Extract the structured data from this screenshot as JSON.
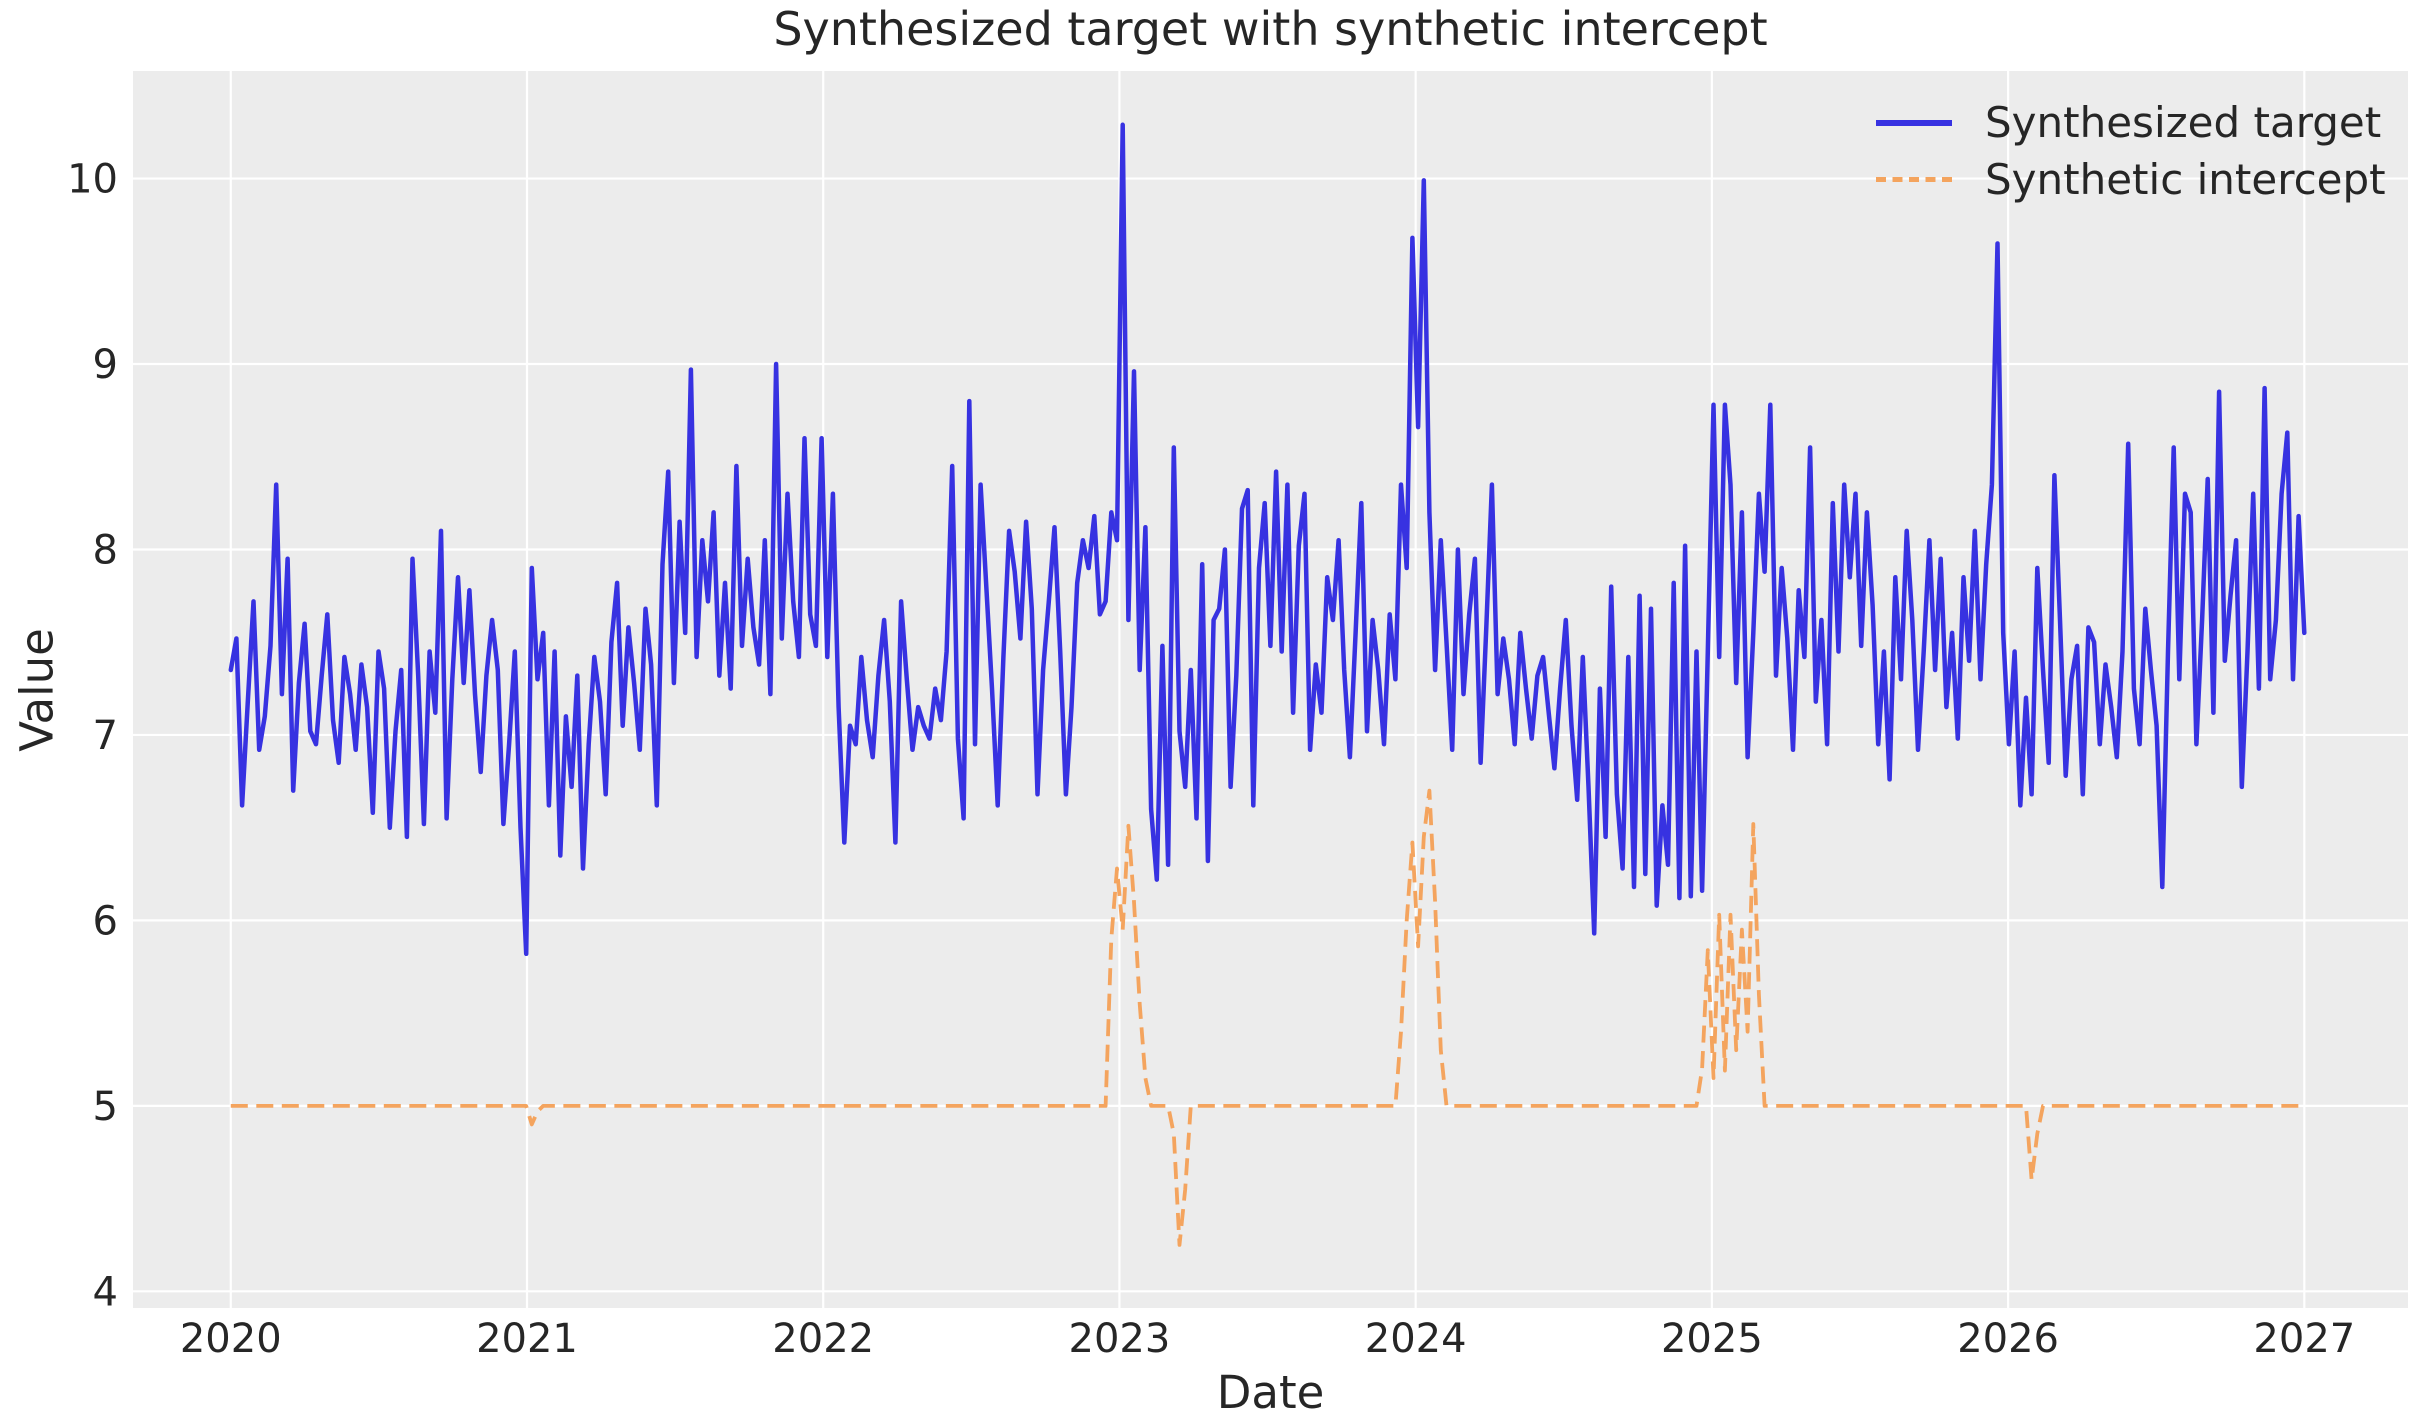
{
  "figure": {
    "background": "#ffffff"
  },
  "chart_data": {
    "type": "line",
    "title": "Synthesized target with synthetic intercept",
    "xlabel": "Date",
    "ylabel": "Value",
    "axes_background": "#ececec",
    "grid": true,
    "grid_color": "#ffffff",
    "text_color": "#262626",
    "legend_position": "upper right",
    "xlim": [
      2019.67,
      2027.35
    ],
    "ylim": [
      3.91,
      10.58
    ],
    "xticks": [
      2020,
      2021,
      2022,
      2023,
      2024,
      2025,
      2026,
      2027
    ],
    "yticks": [
      4,
      5,
      6,
      7,
      8,
      9,
      10
    ],
    "x_start": 2020.0,
    "x_end": 2027.0,
    "x_unit": "years (weekly samples)",
    "n_points": 366,
    "series": [
      {
        "name": "Synthesized target",
        "color": "#3732e1",
        "style": "solid",
        "line_width": 4.5,
        "values": [
          7.35,
          7.52,
          6.62,
          7.18,
          7.72,
          6.92,
          7.1,
          7.48,
          8.35,
          7.22,
          7.95,
          6.7,
          7.28,
          7.6,
          7.02,
          6.95,
          7.32,
          7.65,
          7.08,
          6.85,
          7.42,
          7.22,
          6.92,
          7.38,
          7.15,
          6.58,
          7.45,
          7.25,
          6.5,
          7.02,
          7.35,
          6.45,
          7.95,
          7.32,
          6.52,
          7.45,
          7.12,
          8.1,
          6.55,
          7.3,
          7.85,
          7.28,
          7.78,
          7.22,
          6.8,
          7.32,
          7.62,
          7.35,
          6.52,
          6.95,
          7.45,
          6.5,
          5.82,
          7.9,
          7.3,
          7.55,
          6.62,
          7.45,
          6.35,
          7.1,
          6.72,
          7.32,
          6.28,
          6.95,
          7.42,
          7.18,
          6.68,
          7.5,
          7.82,
          7.05,
          7.58,
          7.28,
          6.92,
          7.68,
          7.38,
          6.62,
          7.92,
          8.42,
          7.28,
          8.15,
          7.55,
          8.97,
          7.42,
          8.05,
          7.72,
          8.2,
          7.32,
          7.82,
          7.25,
          8.45,
          7.48,
          7.95,
          7.58,
          7.38,
          8.05,
          7.22,
          9.0,
          7.52,
          8.3,
          7.72,
          7.42,
          8.6,
          7.65,
          7.48,
          8.6,
          7.42,
          8.3,
          7.15,
          6.42,
          7.05,
          6.95,
          7.42,
          7.08,
          6.88,
          7.32,
          7.62,
          7.18,
          6.42,
          7.72,
          7.3,
          6.92,
          7.15,
          7.05,
          6.98,
          7.25,
          7.08,
          7.45,
          8.45,
          6.98,
          6.55,
          8.8,
          6.95,
          8.35,
          7.8,
          7.25,
          6.62,
          7.42,
          8.1,
          7.88,
          7.52,
          8.15,
          7.68,
          6.68,
          7.35,
          7.72,
          8.12,
          7.45,
          6.68,
          7.15,
          7.82,
          8.05,
          7.9,
          8.18,
          7.65,
          7.72,
          8.2,
          8.05,
          10.29,
          7.62,
          8.96,
          7.35,
          8.12,
          6.6,
          6.22,
          7.48,
          6.3,
          8.55,
          7.02,
          6.72,
          7.35,
          6.55,
          7.92,
          6.32,
          7.62,
          7.68,
          8.0,
          6.72,
          7.32,
          8.22,
          8.32,
          6.62,
          7.9,
          8.25,
          7.48,
          8.42,
          7.45,
          8.35,
          7.12,
          8.02,
          8.3,
          6.92,
          7.38,
          7.12,
          7.85,
          7.62,
          8.05,
          7.35,
          6.88,
          7.55,
          8.25,
          7.02,
          7.62,
          7.35,
          6.95,
          7.65,
          7.3,
          8.35,
          7.9,
          9.68,
          8.66,
          9.99,
          8.2,
          7.35,
          8.05,
          7.5,
          6.92,
          8.0,
          7.22,
          7.65,
          7.95,
          6.85,
          7.58,
          8.35,
          7.22,
          7.52,
          7.3,
          6.95,
          7.55,
          7.25,
          6.98,
          7.32,
          7.42,
          7.12,
          6.82,
          7.25,
          7.62,
          7.05,
          6.65,
          7.42,
          6.72,
          5.93,
          7.25,
          6.45,
          7.8,
          6.68,
          6.28,
          7.42,
          6.18,
          7.75,
          6.25,
          7.68,
          6.08,
          6.62,
          6.3,
          7.82,
          6.12,
          8.02,
          6.13,
          7.45,
          6.16,
          7.45,
          8.78,
          7.42,
          8.78,
          8.35,
          7.28,
          8.2,
          6.88,
          7.55,
          8.3,
          7.88,
          8.78,
          7.32,
          7.9,
          7.52,
          6.92,
          7.78,
          7.42,
          8.55,
          7.18,
          7.62,
          6.95,
          8.25,
          7.45,
          8.35,
          7.85,
          8.3,
          7.48,
          8.2,
          7.7,
          6.95,
          7.45,
          6.76,
          7.85,
          7.3,
          8.1,
          7.62,
          6.92,
          7.45,
          8.05,
          7.35,
          7.95,
          7.15,
          7.55,
          6.98,
          7.85,
          7.4,
          8.1,
          7.3,
          7.92,
          8.35,
          9.65,
          7.55,
          6.95,
          7.45,
          6.62,
          7.2,
          6.68,
          7.9,
          7.35,
          6.85,
          8.4,
          7.62,
          6.78,
          7.3,
          7.48,
          6.68,
          7.58,
          7.5,
          6.95,
          7.38,
          7.15,
          6.88,
          7.45,
          8.57,
          7.25,
          6.95,
          7.68,
          7.35,
          7.05,
          6.18,
          7.45,
          8.55,
          7.3,
          8.3,
          8.2,
          6.95,
          7.62,
          8.38,
          7.12,
          8.85,
          7.4,
          7.75,
          8.05,
          6.72,
          7.45,
          8.3,
          7.25,
          8.87,
          7.3,
          7.62,
          8.3,
          8.63,
          7.3,
          8.18,
          7.55
        ]
      },
      {
        "name": "Synthetic intercept",
        "color": "#f4a45e",
        "style": "dashed",
        "line_width": 3.8,
        "dash_pattern": [
          17,
          8.5
        ],
        "baseline": 5.0,
        "anomalies": {
          "53": 4.9,
          "54": 4.97,
          "155": 5.9,
          "156": 6.28,
          "157": 5.95,
          "158": 6.51,
          "159": 6.1,
          "160": 5.55,
          "161": 5.15,
          "166": 4.85,
          "167": 4.25,
          "168": 4.55,
          "206": 5.4,
          "207": 6.0,
          "208": 6.42,
          "209": 5.86,
          "210": 6.45,
          "211": 6.7,
          "212": 6.1,
          "213": 5.3,
          "259": 5.2,
          "260": 5.84,
          "261": 5.15,
          "262": 6.03,
          "263": 5.19,
          "264": 6.03,
          "265": 5.3,
          "266": 5.95,
          "267": 5.4,
          "268": 6.52,
          "269": 5.6,
          "317": 4.6,
          "318": 4.85
        }
      }
    ]
  }
}
